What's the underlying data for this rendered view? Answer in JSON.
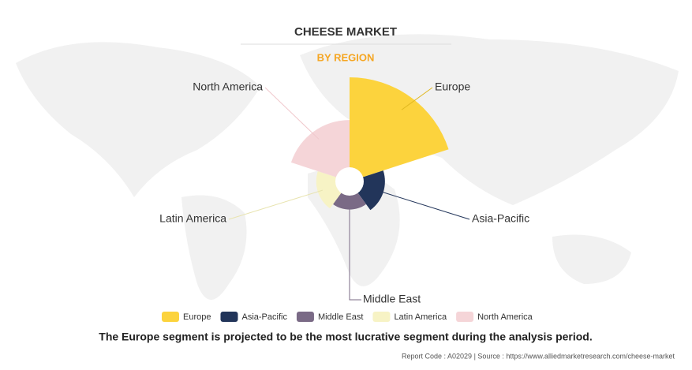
{
  "chart_data": {
    "type": "rose",
    "title": "CHEESE MARKET",
    "subtitle": "BY REGION",
    "categories": [
      "Europe",
      "Asia-Pacific",
      "Middle East",
      "Latin America",
      "North America"
    ],
    "values": [
      100,
      34,
      27,
      32,
      59
    ],
    "colors": [
      "#fcd33d",
      "#22355a",
      "#7a6a86",
      "#f7f3c5",
      "#f5d5d8"
    ],
    "caption": "The Europe segment is projected to be the most lucrative segment during the analysis period.",
    "source": "Report Code : A02029  |  Source : https://www.alliedmarketresearch.com/cheese-market"
  }
}
